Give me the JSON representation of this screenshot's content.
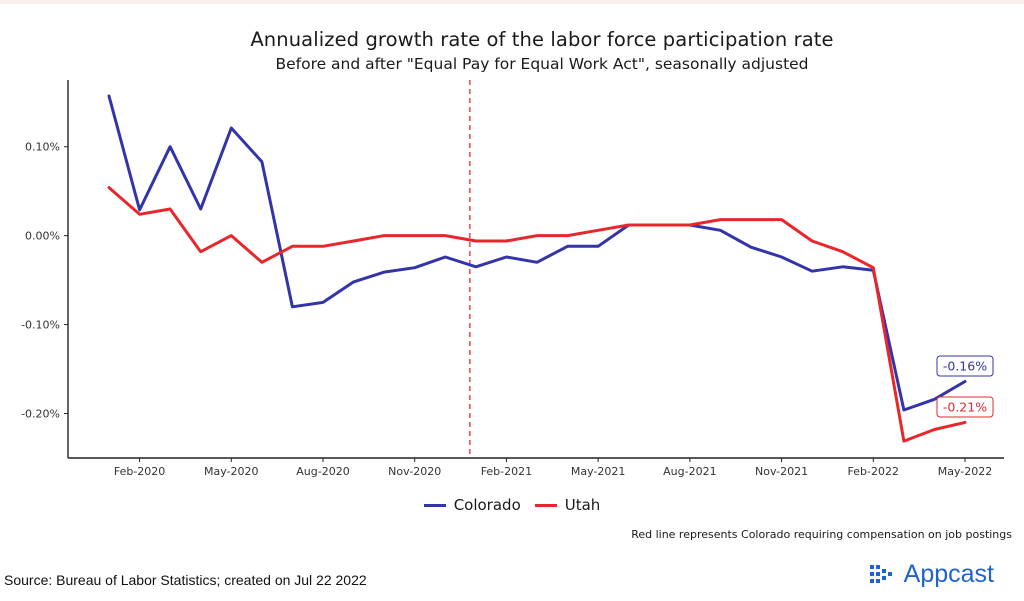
{
  "title": "Annualized growth rate of the labor force participation rate",
  "subtitle": "Before and after \"Equal Pay for Equal Work Act\", seasonally adjusted",
  "note": "Red line represents Colorado requiring compensation on job postings",
  "source": "Source: Bureau of Labor Statistics; created on Jul 22 2022",
  "brand": {
    "name": "Appcast",
    "color": "#1f62d1"
  },
  "chart_data": {
    "type": "line",
    "title": "Annualized growth rate of the labor force participation rate",
    "subtitle": "Before and after \"Equal Pay for Equal Work Act\", seasonally adjusted",
    "x_unit": "month",
    "x": [
      "Jan-2020",
      "Feb-2020",
      "Mar-2020",
      "Apr-2020",
      "May-2020",
      "Jun-2020",
      "Jul-2020",
      "Aug-2020",
      "Sep-2020",
      "Oct-2020",
      "Nov-2020",
      "Dec-2020",
      "Jan-2021",
      "Feb-2021",
      "Mar-2021",
      "Apr-2021",
      "May-2021",
      "Jun-2021",
      "Jul-2021",
      "Aug-2021",
      "Sep-2021",
      "Oct-2021",
      "Nov-2021",
      "Dec-2021",
      "Jan-2022",
      "Feb-2022",
      "Mar-2022",
      "Apr-2022",
      "May-2022"
    ],
    "x_ticks": [
      "Feb-2020",
      "May-2020",
      "Aug-2020",
      "Nov-2020",
      "Feb-2021",
      "May-2021",
      "Aug-2021",
      "Nov-2021",
      "Feb-2022",
      "May-2022"
    ],
    "ylim": [
      -0.25,
      0.175
    ],
    "y_ticks": [
      0.1,
      0.0,
      -0.1,
      -0.2
    ],
    "y_tick_labels": [
      "0.10%",
      "0.00%",
      "-0.10%",
      "-0.20%"
    ],
    "series": [
      {
        "name": "Colorado",
        "color": "#3333aa",
        "values": [
          0.157,
          0.029,
          0.1,
          0.03,
          0.121,
          0.083,
          -0.08,
          -0.075,
          -0.052,
          -0.041,
          -0.036,
          -0.024,
          -0.035,
          -0.024,
          -0.03,
          -0.012,
          -0.012,
          0.012,
          0.012,
          0.012,
          0.006,
          -0.013,
          -0.024,
          -0.04,
          -0.035,
          -0.039,
          -0.196,
          -0.184,
          -0.164
        ],
        "end_label": "-0.16%"
      },
      {
        "name": "Utah",
        "color": "#e8262b",
        "values": [
          0.054,
          0.024,
          0.03,
          -0.018,
          0.0,
          -0.03,
          -0.012,
          -0.012,
          -0.006,
          0.0,
          0.0,
          0.0,
          -0.006,
          -0.006,
          0.0,
          0.0,
          0.006,
          0.012,
          0.012,
          0.012,
          0.018,
          0.018,
          0.018,
          -0.006,
          -0.018,
          -0.036,
          -0.231,
          -0.218,
          -0.21
        ],
        "end_label": "-0.21%"
      }
    ],
    "annotations": [
      {
        "type": "vline",
        "x": "Jan-2021",
        "color": "#e8262b",
        "style": "dashed"
      }
    ],
    "legend": {
      "position": "bottom"
    },
    "grid": false
  }
}
